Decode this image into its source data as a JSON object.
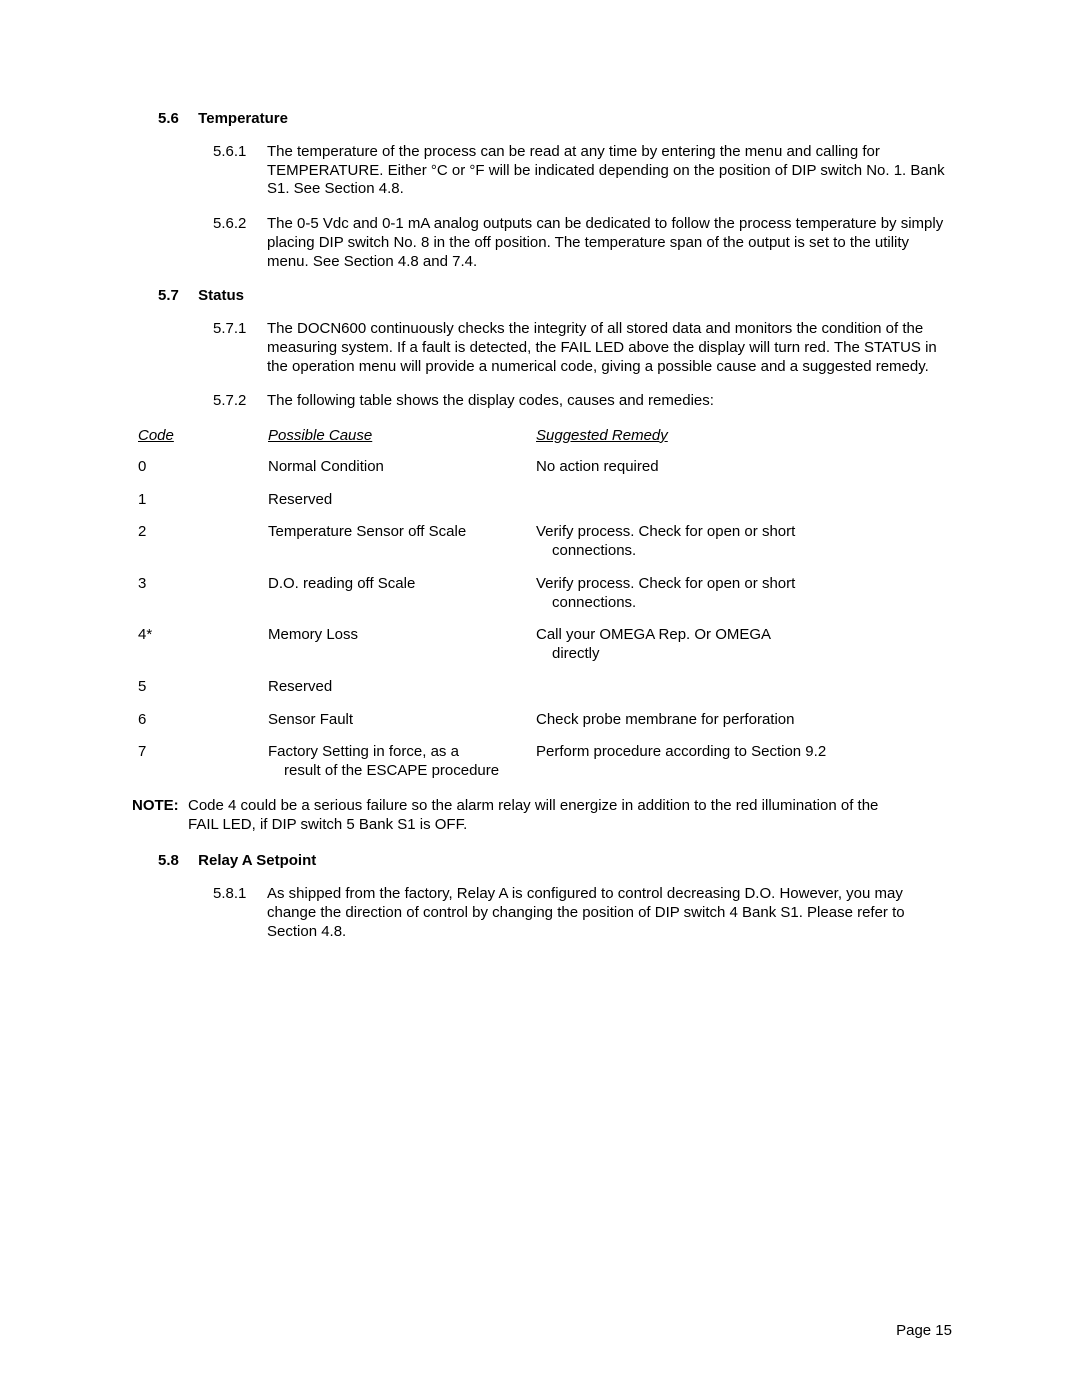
{
  "sections": {
    "s56": {
      "num": "5.6",
      "title": "Temperature"
    },
    "s56_1": {
      "num": "5.6.1",
      "text": "The temperature of the process can be read at any time by entering the menu and calling for TEMPERATURE.  Either °C or °F will be indicated depending on the position of DIP switch No. 1. Bank S1.  See Section 4.8."
    },
    "s56_2": {
      "num": "5.6.2",
      "text": "The 0-5 Vdc and 0-1 mA analog outputs can be dedicated to follow the process temperature by simply placing DIP switch No. 8 in the off position.  The temperature span of the output is set to the utility menu.  See Section 4.8 and 7.4."
    },
    "s57": {
      "num": "5.7",
      "title": "Status"
    },
    "s57_1": {
      "num": "5.7.1",
      "text": "The DOCN600 continuously checks the integrity of all stored data and monitors the condition of the measuring system.  If a fault is detected, the FAIL LED above the display will turn red.  The STATUS in the operation menu will provide a numerical code, giving a possible cause and a suggested remedy."
    },
    "s57_2": {
      "num": "5.7.2",
      "text": "The following table shows the display codes, causes and remedies:"
    },
    "s58": {
      "num": "5.8",
      "title": "Relay A Setpoint"
    },
    "s58_1": {
      "num": "5.8.1",
      "text": "As shipped from the factory, Relay A is configured to control decreasing D.O.  However, you may change the direction of control by changing the position of DIP switch 4 Bank S1.  Please refer to Section 4.8."
    }
  },
  "table": {
    "headers": {
      "code": "Code",
      "cause": "Possible Cause",
      "remedy": "Suggested Remedy"
    },
    "rows": [
      {
        "code": "0",
        "cause": "Normal Condition",
        "cause2": "",
        "remedy": "No action required",
        "remedy2": ""
      },
      {
        "code": "1",
        "cause": "Reserved",
        "cause2": "",
        "remedy": "",
        "remedy2": ""
      },
      {
        "code": "2",
        "cause": "Temperature Sensor off Scale",
        "cause2": "",
        "remedy": "Verify process.  Check for open or short",
        "remedy2": "connections."
      },
      {
        "code": "3",
        "cause": "D.O. reading off Scale",
        "cause2": "",
        "remedy": "Verify process.  Check for open or short",
        "remedy2": "connections."
      },
      {
        "code": "4*",
        "cause": "Memory Loss",
        "cause2": "",
        "remedy": "Call your OMEGA Rep. Or OMEGA",
        "remedy2": "directly"
      },
      {
        "code": "5",
        "cause": "Reserved",
        "cause2": "",
        "remedy": "",
        "remedy2": ""
      },
      {
        "code": "6",
        "cause": "Sensor Fault",
        "cause2": "",
        "remedy": "Check probe membrane for perforation",
        "remedy2": ""
      },
      {
        "code": "7",
        "cause": "Factory Setting in force, as a",
        "cause2": "result of the ESCAPE procedure",
        "remedy": "Perform procedure according to Section 9.2",
        "remedy2": ""
      }
    ]
  },
  "note": {
    "label": "NOTE:",
    "text": "Code 4 could be a serious failure so the alarm relay will energize in addition to the red illumination of the FAIL LED, if DIP switch 5 Bank S1 is OFF."
  },
  "footer": "Page 15"
}
